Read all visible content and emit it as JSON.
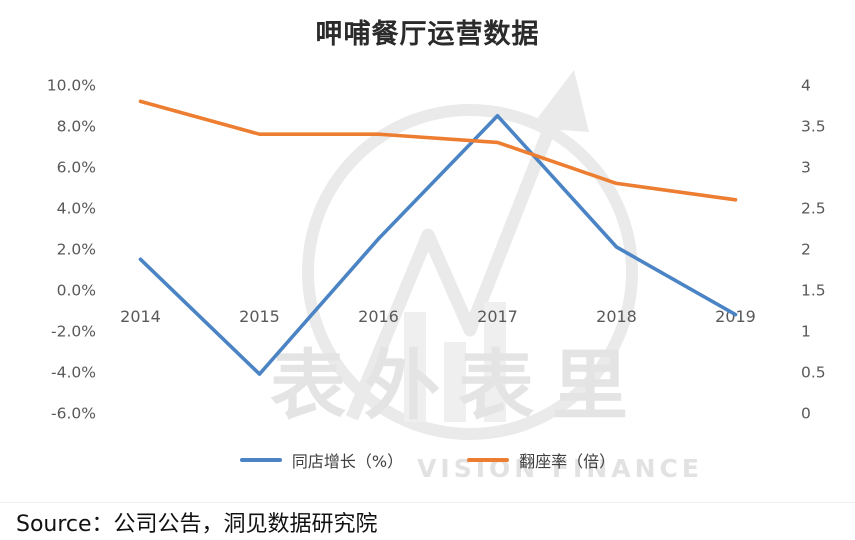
{
  "title": "呷哺餐厅运营数据",
  "source": "Source：公司公告，洞见数据研究院",
  "watermark": {
    "text": "表外表里",
    "subtext": "VISION FINANCE"
  },
  "chart_data": {
    "type": "line",
    "title": "呷哺餐厅运营数据",
    "categories": [
      "2014",
      "2015",
      "2016",
      "2017",
      "2018",
      "2019"
    ],
    "series": [
      {
        "name": "同店增长（%）",
        "axis": "left",
        "color": "#4b84c4",
        "values": [
          1.5,
          -4.1,
          2.5,
          8.5,
          2.1,
          -1.2
        ]
      },
      {
        "name": "翻座率（倍）",
        "axis": "right",
        "color": "#ed7d31",
        "values": [
          3.8,
          3.4,
          3.4,
          3.3,
          2.8,
          2.6
        ]
      }
    ],
    "left_axis": {
      "min": -6,
      "max": 10,
      "ticks": [
        "10.0%",
        "8.0%",
        "6.0%",
        "4.0%",
        "2.0%",
        "0.0%",
        "-2.0%",
        "-4.0%",
        "-6.0%"
      ]
    },
    "right_axis": {
      "min": 0,
      "max": 4,
      "ticks": [
        "4",
        "3.5",
        "3",
        "2.5",
        "2",
        "1.5",
        "1",
        "0.5",
        "0"
      ]
    },
    "grid": false,
    "legend_position": "bottom"
  }
}
